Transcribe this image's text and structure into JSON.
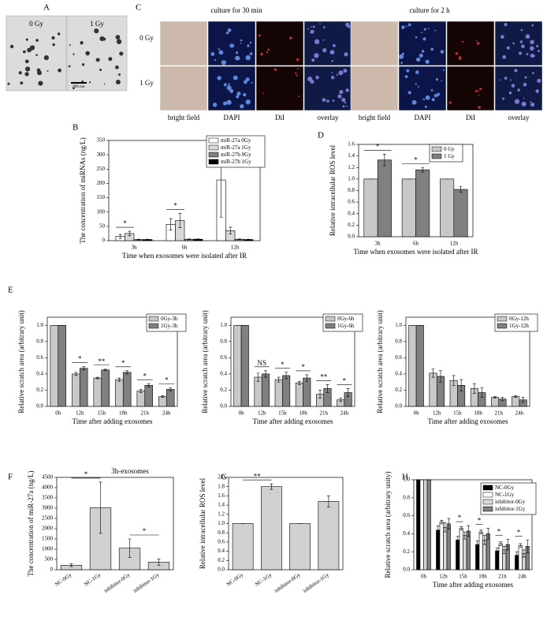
{
  "panel_a": {
    "letter": "A",
    "labels": [
      "0 Gy",
      "1 Gy"
    ],
    "scale": "800 nm"
  },
  "panel_c": {
    "letter": "C",
    "titles": [
      "culture for 30 min",
      "culture for 2 h"
    ],
    "rows": [
      "0 Gy",
      "1 Gy"
    ],
    "columns": [
      "bright field",
      "DAPI",
      "DiI",
      "overlay"
    ]
  },
  "chart_data": [
    {
      "type": "bar",
      "panel": "B",
      "ylabel": "The concentration of miRNAs (ng/L)",
      "xlabel": "Time when exosomes were isolated after IR",
      "categories": [
        "3h",
        "6h",
        "12h"
      ],
      "series": [
        {
          "name": "miR-27a 0Gy",
          "color": "#ffffff",
          "values": [
            15,
            57,
            212
          ],
          "errors": [
            7,
            20,
            130
          ]
        },
        {
          "name": "miR-27a 1Gy",
          "color": "#d9d9d9",
          "values": [
            25,
            70,
            35
          ],
          "errors": [
            8,
            25,
            12
          ]
        },
        {
          "name": "miR-27b 0Gy",
          "color": "#808080",
          "values": [
            4,
            5,
            5
          ],
          "errors": [
            1,
            1,
            1
          ]
        },
        {
          "name": "miR-27b 1Gy",
          "color": "#000000",
          "values": [
            4,
            5,
            4
          ],
          "errors": [
            1,
            1,
            1
          ]
        }
      ],
      "ylim": [
        0,
        350
      ],
      "yticks": [
        0,
        50,
        100,
        150,
        200,
        250,
        300,
        350
      ],
      "annotations": [
        {
          "text": "*",
          "categories": [
            "3h"
          ]
        },
        {
          "text": "*",
          "categories": [
            "6h"
          ]
        }
      ]
    },
    {
      "type": "bar",
      "panel": "D",
      "ylabel": "Relative intracellular ROS level",
      "xlabel": "Time when exosomes were isolated after IR",
      "categories": [
        "3h",
        "6h",
        "12h"
      ],
      "series": [
        {
          "name": "0 Gy",
          "color": "#c8c8c8",
          "values": [
            1,
            1,
            1
          ],
          "errors": [
            0,
            0,
            0
          ]
        },
        {
          "name": "1 Gy",
          "color": "#808080",
          "values": [
            1.33,
            1.16,
            0.82
          ],
          "errors": [
            0.1,
            0.04,
            0.05
          ]
        }
      ],
      "ylim": [
        0,
        1.6
      ],
      "yticks": [
        {
          "value": 0,
          "label": "0.0"
        },
        0.2,
        0.4,
        0.6,
        0.8,
        {
          "value": 1,
          "label": "1.0"
        },
        1.2,
        1.4,
        1.6
      ],
      "annotations": [
        {
          "text": "*",
          "categories": [
            "3h"
          ]
        },
        {
          "text": "*",
          "categories": [
            "6h"
          ]
        }
      ]
    },
    {
      "type": "bar",
      "panel": "E",
      "ylabel": "Relative scratch area (arbitrary unit)",
      "xlabel": "Time after adding exosomes",
      "categories": [
        "0h",
        "12h",
        "15h",
        "18h",
        "21h",
        "24h"
      ],
      "series": [
        {
          "name": "0Gy-3h",
          "color": "#c8c8c8",
          "values": [
            1,
            0.4,
            0.35,
            0.33,
            0.19,
            0.12
          ],
          "errors": [
            0,
            0.02,
            0.01,
            0.02,
            0.02,
            0.01
          ]
        },
        {
          "name": "1Gy-3h",
          "color": "#808080",
          "values": [
            1,
            0.47,
            0.45,
            0.42,
            0.26,
            0.21
          ],
          "errors": [
            0,
            0.02,
            0.01,
            0.02,
            0.02,
            0.02
          ]
        }
      ],
      "ylim": [
        0,
        1.1
      ],
      "yticks": [
        {
          "value": 0,
          "label": "0.0"
        },
        0.2,
        0.4,
        0.6,
        0.8,
        {
          "value": 1,
          "label": "1.0"
        }
      ],
      "annotations": [
        {
          "text": "*",
          "categories": [
            "12h"
          ]
        },
        {
          "text": "**",
          "categories": [
            "15h"
          ]
        },
        {
          "text": "*",
          "categories": [
            "18h"
          ]
        },
        {
          "text": "*",
          "categories": [
            "21h"
          ]
        },
        {
          "text": "*",
          "categories": [
            "24h"
          ]
        }
      ]
    },
    {
      "type": "bar",
      "ylabel": "Relative scratch area (arbitrary unit)",
      "xlabel": "Time after adding exosomes",
      "categories": [
        "0h",
        "12h",
        "15h",
        "18h",
        "21h",
        "24h"
      ],
      "series": [
        {
          "name": "0Gy-6h",
          "color": "#c8c8c8",
          "values": [
            1,
            0.36,
            0.33,
            0.29,
            0.15,
            0.08
          ],
          "errors": [
            0,
            0.05,
            0.03,
            0.02,
            0.05,
            0.02
          ]
        },
        {
          "name": "1Gy-6h",
          "color": "#808080",
          "values": [
            1,
            0.4,
            0.38,
            0.35,
            0.22,
            0.17
          ],
          "errors": [
            0,
            0.04,
            0.04,
            0.04,
            0.05,
            0.05
          ]
        }
      ],
      "ylim": [
        0,
        1.1
      ],
      "yticks": [
        {
          "value": 0,
          "label": "0.0"
        },
        0.2,
        0.4,
        0.6,
        0.8,
        {
          "value": 1,
          "label": "1.0"
        }
      ],
      "annotations": [
        {
          "text": "NS",
          "categories": [
            "12h"
          ]
        },
        {
          "text": "*",
          "categories": [
            "15h"
          ]
        },
        {
          "text": "*",
          "categories": [
            "18h"
          ]
        },
        {
          "text": "**",
          "categories": [
            "21h"
          ]
        },
        {
          "text": "*",
          "categories": [
            "24h"
          ]
        }
      ]
    },
    {
      "type": "bar",
      "ylabel": "Relative scratch area (arbitrary unit)",
      "xlabel": "Time after adding exosomes",
      "categories": [
        "0h",
        "12h",
        "15h",
        "18h",
        "21h",
        "24h"
      ],
      "series": [
        {
          "name": "0Gy-12h",
          "color": "#c8c8c8",
          "values": [
            1,
            0.41,
            0.32,
            0.22,
            0.11,
            0.12
          ],
          "errors": [
            0,
            0.05,
            0.06,
            0.06,
            0.01,
            0.01
          ]
        },
        {
          "name": "1Gy-12h",
          "color": "#808080",
          "values": [
            1,
            0.37,
            0.26,
            0.17,
            0.09,
            0.08
          ],
          "errors": [
            0,
            0.07,
            0.07,
            0.06,
            0.02,
            0.03
          ]
        }
      ],
      "ylim": [
        0,
        1.1
      ],
      "yticks": [
        {
          "value": 0,
          "label": "0.0"
        },
        0.2,
        0.4,
        0.6,
        0.8,
        {
          "value": 1,
          "label": "1.0"
        }
      ]
    },
    {
      "type": "bar",
      "panel": "F",
      "subtitle": "3h-exosomes",
      "ylabel": "The concentration of miR-27a (ng/L)",
      "categories": [
        "NC-0Gy",
        "NC-1Gy",
        "inhibitor-0Gy",
        "inhibitor-1Gy"
      ],
      "color": "#d0d0d0",
      "values": [
        220,
        3020,
        1050,
        370
      ],
      "errors": [
        70,
        1250,
        450,
        150
      ],
      "ylim": [
        0,
        4500
      ],
      "yticks": [
        0,
        500,
        1000,
        1500,
        2000,
        2500,
        3000,
        3500,
        4000,
        4500
      ],
      "annotations": [
        {
          "text": "*",
          "categories": [
            "NC-0Gy",
            "NC-1Gy"
          ]
        },
        {
          "text": "*",
          "categories": [
            "inhibitor-0Gy",
            "inhibitor-1Gy"
          ]
        }
      ]
    },
    {
      "type": "bar",
      "panel": "G",
      "ylabel": "Relative intracellular ROS level",
      "categories": [
        "NC-0Gy",
        "NC-1Gy",
        "inhibitor-0Gy",
        "inhibitor-1Gy"
      ],
      "color": "#d0d0d0",
      "values": [
        1,
        1.8,
        1,
        1.48
      ],
      "errors": [
        0,
        0.06,
        0,
        0.12
      ],
      "ylim": [
        0,
        2
      ],
      "yticks": [
        {
          "value": 0,
          "label": "0.0"
        },
        0.2,
        0.4,
        0.6,
        0.8,
        {
          "value": 1,
          "label": "1.0"
        },
        1.2,
        1.4,
        1.6,
        1.8,
        {
          "value": 2,
          "label": "2.0"
        }
      ],
      "annotations": [
        {
          "text": "**",
          "categories": [
            "NC-0Gy",
            "NC-1Gy"
          ]
        }
      ]
    },
    {
      "type": "bar",
      "panel": "H",
      "ylabel": "Relative scratch area (arbitrary unity)",
      "xlabel": "Time after adding exosomes",
      "categories": [
        "0h",
        "12h",
        "15h",
        "18h",
        "21h",
        "24h"
      ],
      "series": [
        {
          "name": "NC-0Gy",
          "color": "#000000",
          "values": [
            1,
            0.44,
            0.33,
            0.28,
            0.21,
            0.16
          ],
          "errors": [
            0,
            0.05,
            0.04,
            0.04,
            0.03,
            0.04
          ]
        },
        {
          "name": "NC-1Gy",
          "color": "#ffffff",
          "values": [
            1,
            0.53,
            0.46,
            0.42,
            0.29,
            0.27
          ],
          "errors": [
            0,
            0.02,
            0.02,
            0.02,
            0.02,
            0.02
          ]
        },
        {
          "name": "inhibitor-0Gy",
          "color": "#d9d9d9",
          "values": [
            1,
            0.47,
            0.38,
            0.33,
            0.22,
            0.18
          ],
          "errors": [
            0,
            0.05,
            0.04,
            0.05,
            0.04,
            0.04
          ]
        },
        {
          "name": "inhibitor-1Gy",
          "color": "#808080",
          "values": [
            1,
            0.51,
            0.43,
            0.4,
            0.28,
            0.26
          ],
          "errors": [
            0,
            0.06,
            0.06,
            0.06,
            0.06,
            0.07
          ]
        }
      ],
      "ylim": [
        0,
        1
      ],
      "yticks": [
        {
          "value": 0,
          "label": "0.0"
        },
        0.2,
        0.4,
        0.6,
        0.8,
        {
          "value": 1,
          "label": "1.0"
        }
      ],
      "annotations": [
        {
          "text": "*",
          "categories": [
            "15h"
          ]
        },
        {
          "text": "*",
          "categories": [
            "18h"
          ]
        },
        {
          "text": "*",
          "categories": [
            "21h"
          ]
        },
        {
          "text": "*",
          "categories": [
            "24h"
          ]
        }
      ]
    }
  ]
}
